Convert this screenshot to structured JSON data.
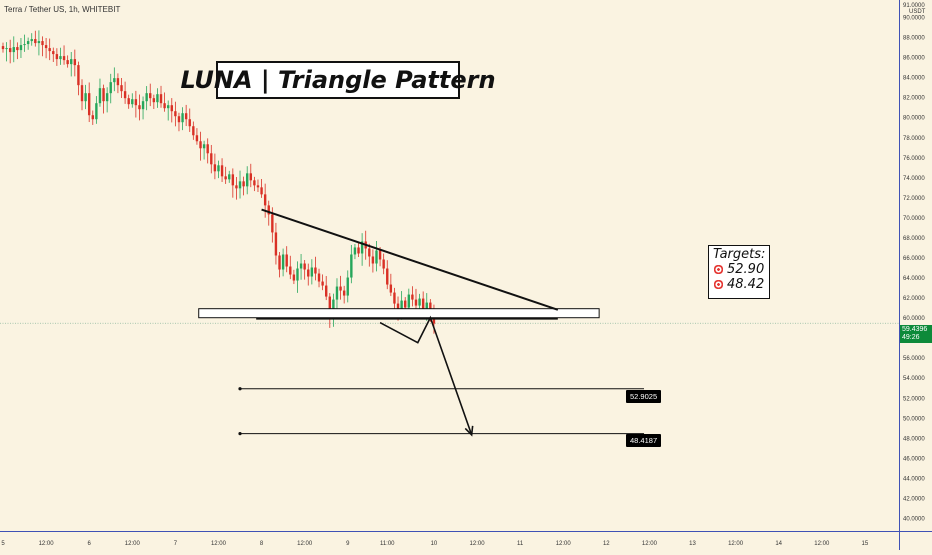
{
  "header": {
    "symbol": "Terra / Tether US, 1h, WHITEBIT"
  },
  "title": "LUNA | Triangle Pattern",
  "targets": {
    "heading": "Targets:",
    "items": [
      "52.90",
      "48.42"
    ]
  },
  "price_labels": {
    "target1": "52.9025",
    "target2": "48.4187"
  },
  "current_price": {
    "value": "59.4396",
    "countdown": "49:26",
    "color": "#0d8a3a"
  },
  "colors": {
    "background": "#faf3e1",
    "up_candle": "#26a65b",
    "down_candle": "#d93025",
    "axis_line": "#3f51b5"
  },
  "chart_data": {
    "type": "candlestick",
    "title": "LUNA | Triangle Pattern",
    "currency": "USDT",
    "y_axis": {
      "ticks": [
        "40.0000",
        "42.0000",
        "44.0000",
        "46.0000",
        "48.0000",
        "50.0000",
        "52.0000",
        "54.0000",
        "56.0000",
        "58.0000",
        "60.0000",
        "62.0000",
        "64.0000",
        "66.0000",
        "68.0000",
        "70.0000",
        "72.0000",
        "74.0000",
        "76.0000",
        "78.0000",
        "80.0000",
        "82.0000",
        "84.0000",
        "86.0000",
        "88.0000",
        "90.0000"
      ],
      "top_label": "91.0000",
      "range": [
        39.5,
        91.5
      ]
    },
    "x_axis": {
      "ticks": [
        {
          "label": "5",
          "t": 0
        },
        {
          "label": "12:00",
          "t": 12
        },
        {
          "label": "6",
          "t": 24
        },
        {
          "label": "12:00",
          "t": 36
        },
        {
          "label": "7",
          "t": 48
        },
        {
          "label": "12:00",
          "t": 60
        },
        {
          "label": "8",
          "t": 72
        },
        {
          "label": "12:00",
          "t": 84
        },
        {
          "label": "9",
          "t": 96
        },
        {
          "label": "11:00",
          "t": 107
        },
        {
          "label": "10",
          "t": 120
        },
        {
          "label": "12:00",
          "t": 132
        },
        {
          "label": "11",
          "t": 144
        },
        {
          "label": "12:00",
          "t": 156
        },
        {
          "label": "12",
          "t": 168
        },
        {
          "label": "12:00",
          "t": 180
        },
        {
          "label": "13",
          "t": 192
        },
        {
          "label": "12:00",
          "t": 204
        },
        {
          "label": "14",
          "t": 216
        },
        {
          "label": "12:00",
          "t": 228
        },
        {
          "label": "15",
          "t": 240
        }
      ],
      "range": [
        0,
        249.5
      ]
    },
    "closes": [
      86.8,
      86.9,
      86.5,
      87.0,
      86.7,
      87.2,
      87.3,
      87.6,
      87.8,
      87.4,
      87.6,
      87.2,
      86.9,
      86.6,
      86.3,
      85.8,
      86.1,
      85.7,
      85.3,
      85.8,
      85.2,
      83.2,
      81.6,
      82.4,
      80.2,
      79.8,
      81.4,
      82.9,
      81.6,
      82.4,
      83.5,
      83.9,
      83.2,
      82.6,
      81.9,
      81.3,
      81.8,
      81.2,
      80.8,
      81.6,
      82.4,
      81.9,
      81.5,
      82.3,
      81.4,
      80.9,
      81.2,
      80.6,
      80.1,
      79.5,
      80.4,
      79.8,
      79.1,
      78.2,
      77.6,
      76.9,
      77.3,
      76.4,
      75.3,
      74.6,
      75.2,
      74.1,
      73.8,
      74.3,
      73.2,
      72.9,
      73.6,
      73.1,
      74.4,
      73.7,
      73.2,
      73.0,
      72.3,
      71.2,
      70.3,
      68.5,
      66.2,
      64.8,
      66.3,
      65.1,
      64.3,
      63.7,
      64.9,
      65.4,
      64.8,
      64.1,
      65.0,
      64.4,
      63.6,
      63.2,
      62.1,
      60.2,
      61.8,
      63.1,
      62.7,
      62.2,
      64.0,
      66.3,
      67.0,
      66.4,
      67.6,
      66.9,
      66.1,
      65.4,
      66.7,
      65.8,
      64.9,
      63.3,
      62.5,
      61.4,
      60.8,
      61.7,
      61.0,
      62.3,
      61.8,
      61.2,
      61.9,
      60.9,
      61.5,
      60.7,
      59.4
    ],
    "drawings": {
      "triangle_upper_line": [
        {
          "t": 72.0,
          "price": 70.78
        },
        {
          "t": 154.5,
          "price": 60.78
        }
      ],
      "triangle_lower_line": [
        {
          "t": 70.5,
          "price": 59.9
        },
        {
          "t": 154.5,
          "price": 59.9
        }
      ],
      "support_zone": {
        "t_start": 54.5,
        "t_end": 166.0,
        "price_top": 60.89,
        "price_bottom": 59.99
      },
      "projection_path": [
        {
          "t": 105.0,
          "price": 59.5
        },
        {
          "t": 115.5,
          "price": 57.5
        },
        {
          "t": 119.0,
          "price": 60.0
        },
        {
          "t": 130.5,
          "price": 48.3
        }
      ],
      "target_lines": [
        {
          "t_start": 66.0,
          "t_end": 178.5,
          "price": 52.9025
        },
        {
          "t_start": 66.0,
          "t_end": 178.5,
          "price": 48.4187
        }
      ]
    }
  }
}
